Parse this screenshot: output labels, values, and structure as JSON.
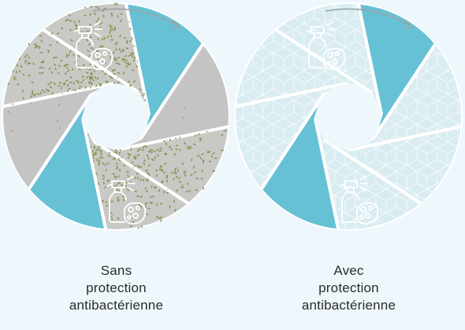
{
  "panels": [
    {
      "id": "without",
      "caption": [
        "Sans",
        "protection",
        "antibactérienne"
      ],
      "colors": {
        "gray_blade": "#c4c4c4",
        "bacteria_blade": "#c8c8c4",
        "clean_blade": "#67c1d5",
        "speck": "#8a9a6a",
        "bacteria": "#7a8f45"
      },
      "blade_kinds": [
        "clean",
        "gray",
        "bacteria",
        "bacteria",
        "clean",
        "gray",
        "bacteria",
        "bacteria"
      ],
      "icons": [
        "spray-sponge-icon",
        "spray-sponge-icon"
      ]
    },
    {
      "id": "with",
      "caption": [
        "Avec",
        "protection",
        "antibactérienne"
      ],
      "colors": {
        "pale_blade": "#d9ecf1",
        "pattern": "#ffffff",
        "clean_blade": "#67c1d5"
      },
      "blade_kinds": [
        "clean",
        "pale",
        "pale",
        "pale",
        "clean",
        "pale",
        "pale",
        "pale"
      ],
      "icons": [
        "spray-sponge-icon",
        "spray-sponge-icon"
      ]
    }
  ],
  "arrow_color": "#9aa4a8"
}
